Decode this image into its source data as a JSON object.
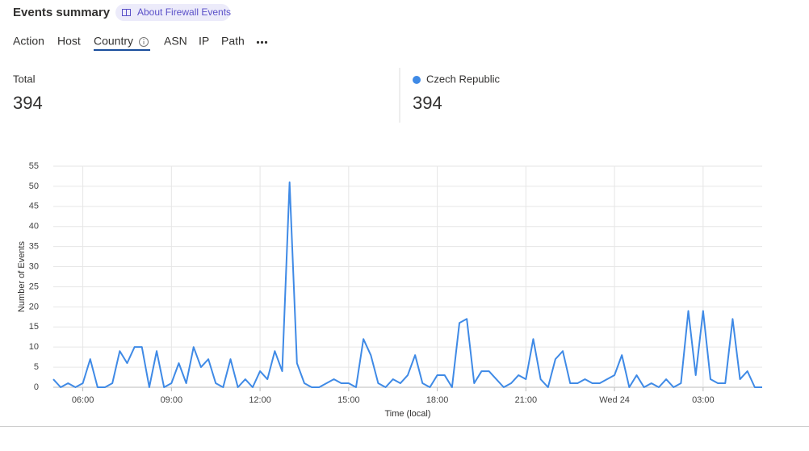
{
  "header": {
    "title": "Events summary",
    "link": "About Firewall Events"
  },
  "tabs": [
    "Action",
    "Host",
    "Country",
    "ASN",
    "IP",
    "Path"
  ],
  "stats": [
    {
      "label": "Total",
      "value": 394
    },
    {
      "label": "Czech Republic",
      "value": 394
    }
  ],
  "chart_data": {
    "type": "line",
    "x_label": "Time (local)",
    "y_label": "Number of Events",
    "x": [
      5,
      5.25,
      5.5,
      5.75,
      6,
      6.25,
      6.5,
      6.75,
      7,
      7.25,
      7.5,
      7.75,
      8,
      8.25,
      8.5,
      8.75,
      9,
      9.25,
      9.5,
      9.75,
      10,
      10.25,
      10.5,
      10.75,
      11,
      11.25,
      11.5,
      11.75,
      12,
      12.25,
      12.5,
      12.75,
      13,
      13.25,
      13.5,
      13.75,
      14,
      14.25,
      14.5,
      14.75,
      15,
      15.25,
      15.5,
      15.75,
      16,
      16.25,
      16.5,
      16.75,
      17,
      17.25,
      17.5,
      17.75,
      18,
      18.25,
      18.5,
      18.75,
      19,
      19.25,
      19.5,
      19.75,
      20,
      20.25,
      20.5,
      20.75,
      21,
      21.25,
      21.5,
      21.75,
      22,
      22.25,
      22.5,
      22.75,
      23,
      23.25,
      23.5,
      23.75,
      24,
      24.25,
      24.5,
      24.75,
      25,
      25.25,
      25.5,
      25.75,
      26,
      26.25,
      26.5,
      26.75,
      27,
      27.25,
      27.5,
      27.75,
      28,
      28.25,
      28.5,
      28.75,
      29
    ],
    "series": [
      {
        "name": "Czech Republic",
        "color": "#3f8ae6",
        "values": [
          2,
          0,
          1,
          0,
          1,
          7,
          0,
          0,
          1,
          9,
          6,
          10,
          10,
          0,
          9,
          0,
          1,
          6,
          1,
          10,
          5,
          7,
          1,
          0,
          7,
          0,
          2,
          0,
          4,
          2,
          9,
          4,
          51,
          6,
          1,
          0,
          0,
          1,
          2,
          1,
          1,
          0,
          12,
          8,
          1,
          0,
          2,
          1,
          3,
          8,
          1,
          0,
          3,
          3,
          0,
          16,
          17,
          1,
          4,
          4,
          2,
          0,
          1,
          3,
          2,
          12,
          2,
          0,
          7,
          9,
          1,
          1,
          2,
          1,
          1,
          2,
          3,
          8,
          0,
          3,
          0,
          1,
          0,
          2,
          0,
          1,
          19,
          3,
          19,
          2,
          1,
          1,
          17,
          2,
          4,
          0,
          0
        ]
      }
    ],
    "xlim": [
      5,
      29
    ],
    "xticks": [
      {
        "value": 6,
        "label": "06:00"
      },
      {
        "value": 9,
        "label": "09:00"
      },
      {
        "value": 12,
        "label": "12:00"
      },
      {
        "value": 15,
        "label": "15:00"
      },
      {
        "value": 18,
        "label": "18:00"
      },
      {
        "value": 21,
        "label": "21:00"
      },
      {
        "value": 24,
        "label": "Wed 24"
      },
      {
        "value": 27,
        "label": "03:00"
      }
    ],
    "ylim": [
      0,
      55
    ],
    "yticks": [
      0,
      5,
      10,
      15,
      20,
      25,
      30,
      35,
      40,
      45,
      50,
      55
    ],
    "grid": true
  }
}
